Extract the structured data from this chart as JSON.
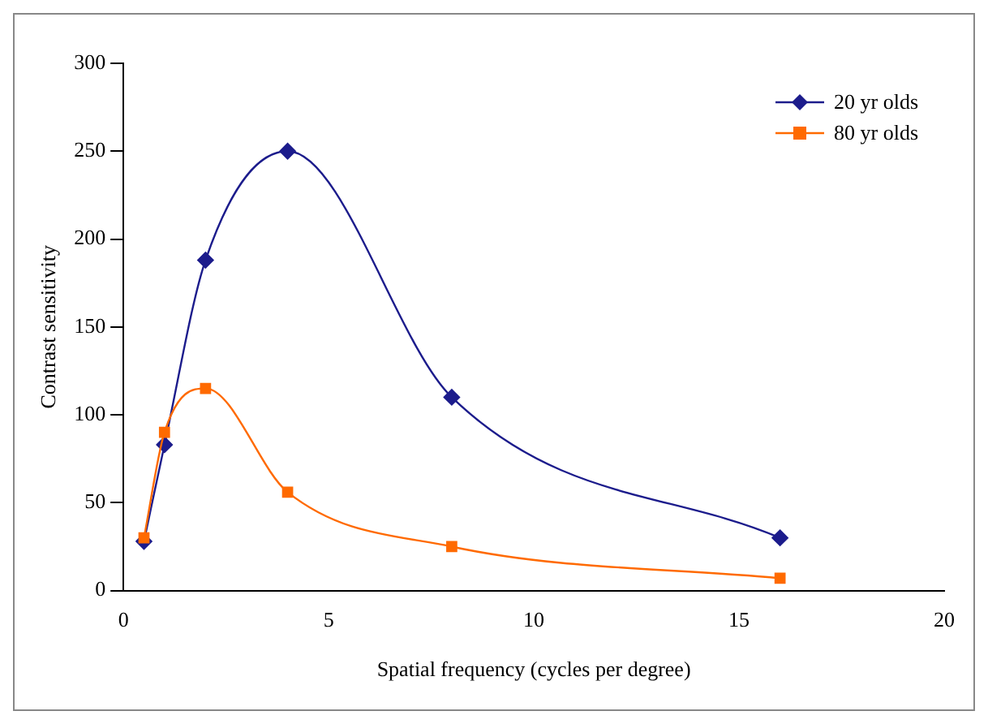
{
  "chart_data": {
    "type": "line",
    "xlabel": "Spatial frequency (cycles per degree)",
    "ylabel": "Contrast sensitivity",
    "xlim": [
      0,
      20
    ],
    "xticks": [
      0,
      5,
      10,
      15,
      20
    ],
    "ylim": [
      0,
      300
    ],
    "yticks": [
      0,
      50,
      100,
      150,
      200,
      250,
      300
    ],
    "grid": false,
    "legend": "top right",
    "series": [
      {
        "name": "20 yr olds",
        "color": "#1c1c8c",
        "marker": "diamond",
        "x": [
          0.5,
          1,
          2,
          4,
          8,
          16
        ],
        "values": [
          28,
          83,
          188,
          250,
          110,
          30
        ]
      },
      {
        "name": "80 yr olds",
        "color": "#ff6a00",
        "marker": "square",
        "x": [
          0.5,
          1,
          2,
          4,
          8,
          16
        ],
        "values": [
          30,
          90,
          115,
          56,
          25,
          7
        ]
      }
    ]
  }
}
